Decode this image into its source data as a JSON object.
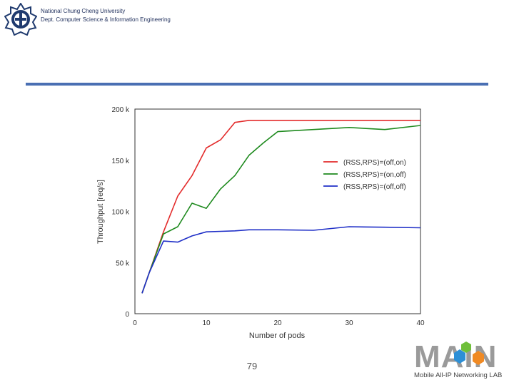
{
  "header": {
    "university": "National Chung Cheng University",
    "department": "Dept. Computer Science & Information Engineering"
  },
  "footer": {
    "page_number": "79",
    "lab_logo_text": "MAIN",
    "lab_name": "Mobile All-IP Networking LAB"
  },
  "colors": {
    "rule": "#4a6fb3",
    "header_text": "#1f2f5c",
    "logo_navy": "#1f3a6e"
  },
  "chart_data": {
    "type": "line",
    "title": "",
    "xlabel": "Number of pods",
    "ylabel": "Throughput [req/s]",
    "xlim": [
      0,
      40
    ],
    "ylim": [
      0,
      200000
    ],
    "xticks": [
      0,
      10,
      20,
      30,
      40
    ],
    "yticks": [
      0,
      50000,
      100000,
      150000,
      200000
    ],
    "ytick_labels": [
      "0",
      "50 k",
      "100 k",
      "150 k",
      "200 k"
    ],
    "grid": false,
    "legend_position": "center-right",
    "series": [
      {
        "name": "(RSS,RPS)=(off,on)",
        "color": "#e32b2b",
        "x": [
          1,
          2,
          4,
          6,
          8,
          10,
          12,
          14,
          16,
          18,
          20,
          25,
          30,
          35,
          40
        ],
        "y": [
          20000,
          40000,
          80000,
          115000,
          135000,
          162000,
          170000,
          187000,
          189000,
          189000,
          189000,
          189000,
          189000,
          189000,
          189000
        ]
      },
      {
        "name": "(RSS,RPS)=(on,off)",
        "color": "#1e8a1e",
        "x": [
          1,
          2,
          4,
          6,
          8,
          10,
          12,
          14,
          16,
          18,
          20,
          25,
          30,
          35,
          40
        ],
        "y": [
          20000,
          40000,
          78000,
          85000,
          108000,
          103000,
          122000,
          135000,
          155000,
          167000,
          178000,
          180000,
          182000,
          180000,
          184000
        ]
      },
      {
        "name": "(RSS,RPS)=(off,off)",
        "color": "#1f2fc7",
        "x": [
          1,
          2,
          4,
          6,
          8,
          10,
          12,
          14,
          16,
          18,
          20,
          25,
          30,
          35,
          40
        ],
        "y": [
          20000,
          40000,
          71000,
          70000,
          76000,
          80000,
          80500,
          81000,
          82000,
          82000,
          82000,
          81500,
          85000,
          84500,
          84000
        ]
      }
    ]
  }
}
